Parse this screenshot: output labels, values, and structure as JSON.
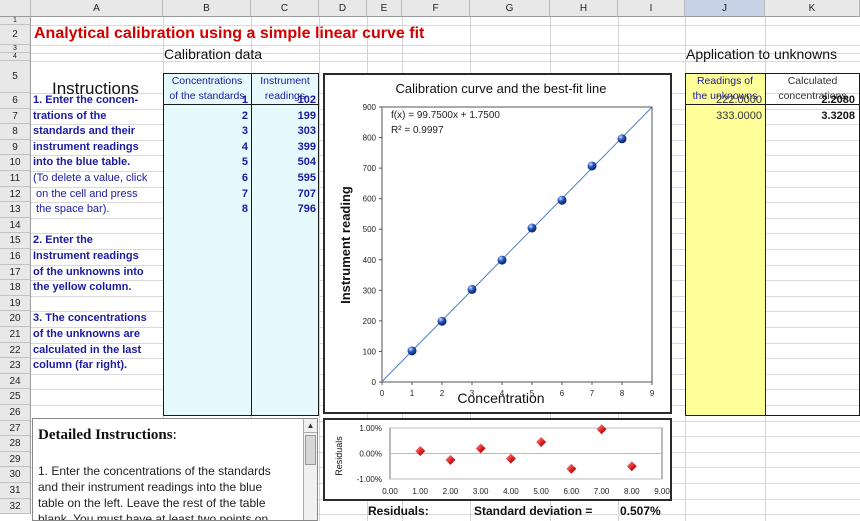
{
  "columns": [
    "A",
    "B",
    "C",
    "D",
    "E",
    "F",
    "G",
    "H",
    "I",
    "J",
    "K"
  ],
  "rows": [
    "1",
    "2",
    "3",
    "4",
    "5",
    "6",
    "7",
    "8",
    "9",
    "10",
    "11",
    "12",
    "13",
    "14",
    "15",
    "16",
    "17",
    "18",
    "19",
    "20",
    "21",
    "22",
    "23",
    "24",
    "25",
    "26",
    "27",
    "28",
    "29",
    "30",
    "31",
    "32"
  ],
  "title": "Analytical calibration using a simple linear curve fit",
  "calibration_label": "Calibration data",
  "unknowns_label": "Application to unknowns",
  "instructions_heading": "Instructions",
  "instructions": [
    "1. Enter the concen-",
    "trations of the",
    "standards and their",
    "instrument readings",
    "into the blue table.",
    "(To delete a value, click",
    " on the cell and press",
    " the space bar).",
    "",
    "2. Enter the",
    "Instrument readings",
    "of the unknowns into",
    "the yellow column.",
    "",
    "3. The concentrations",
    "of the unknowns are",
    "calculated in the last",
    "column (far right)."
  ],
  "table_headers": {
    "conc_line1": "Concentrations",
    "conc_line2": "of the standards",
    "inst_line1": "Instrument",
    "inst_line2": "readings",
    "unk_line1": "Readings of",
    "unk_line2": "the unknowns",
    "calc_line1": "Calculated",
    "calc_line2": "concentrations"
  },
  "standards": [
    {
      "conc": "1",
      "reading": "102"
    },
    {
      "conc": "2",
      "reading": "199"
    },
    {
      "conc": "3",
      "reading": "303"
    },
    {
      "conc": "4",
      "reading": "399"
    },
    {
      "conc": "5",
      "reading": "504"
    },
    {
      "conc": "6",
      "reading": "595"
    },
    {
      "conc": "7",
      "reading": "707"
    },
    {
      "conc": "8",
      "reading": "796"
    }
  ],
  "unknowns": [
    {
      "reading": "222.0000",
      "calc": "2.2080"
    },
    {
      "reading": "333.0000",
      "calc": "3.3208"
    }
  ],
  "detailed": {
    "heading": "Detailed Instructions",
    "colon": ":",
    "lines": [
      "1. Enter the concentrations of the standards",
      "and their instrument readings into the blue",
      "table on the left. Leave the rest of the table",
      "blank. You must have at least two points on"
    ]
  },
  "residual_footer": {
    "label": "Residuals:",
    "sd_label": "Standard deviation =",
    "sd_value": "0.507%"
  },
  "colors": {
    "title": "#d40000",
    "blue_table": "#e6fafe",
    "yellow_column": "#ffff99",
    "text_blue": "#1a1aa0",
    "fit_line": "#4a7fc1",
    "residual_marker": "#d81818"
  },
  "chart_data": [
    {
      "type": "scatter",
      "title": "Calibration curve and the best-fit line",
      "xlabel": "Concentration",
      "ylabel": "Instrument reading",
      "xlim": [
        0,
        9
      ],
      "ylim": [
        0,
        900
      ],
      "xticks": [
        "0",
        "1",
        "2",
        "3",
        "4",
        "5",
        "6",
        "7",
        "8",
        "9"
      ],
      "yticks": [
        "0",
        "100",
        "200",
        "300",
        "400",
        "500",
        "600",
        "700",
        "800",
        "900"
      ],
      "equation": "f(x) = 99.7500x + 1.7500",
      "r2": "R² = 0.9997",
      "fit": {
        "slope": 99.75,
        "intercept": 1.75
      },
      "x": [
        1,
        2,
        3,
        4,
        5,
        6,
        7,
        8
      ],
      "y": [
        102,
        199,
        303,
        399,
        504,
        595,
        707,
        796
      ]
    },
    {
      "type": "scatter",
      "ylabel": "Residuals",
      "xlim": [
        0,
        9
      ],
      "ylim": [
        -1,
        1
      ],
      "xticks": [
        "0.00",
        "1.00",
        "2.00",
        "3.00",
        "4.00",
        "5.00",
        "6.00",
        "7.00",
        "8.00",
        "9.00"
      ],
      "yticks": [
        "1.00%",
        "0.00%",
        "-1.00%"
      ],
      "x": [
        1,
        2,
        3,
        4,
        5,
        6,
        7,
        8
      ],
      "y": [
        0.1,
        -0.25,
        0.2,
        -0.2,
        0.45,
        -0.6,
        0.95,
        -0.5
      ]
    }
  ]
}
